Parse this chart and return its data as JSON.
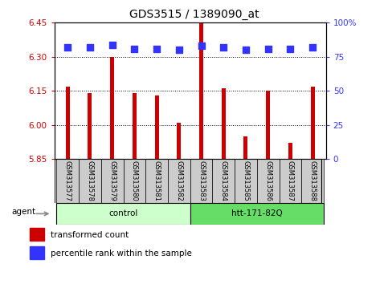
{
  "title": "GDS3515 / 1389090_at",
  "samples": [
    "GSM313577",
    "GSM313578",
    "GSM313579",
    "GSM313580",
    "GSM313581",
    "GSM313582",
    "GSM313583",
    "GSM313584",
    "GSM313585",
    "GSM313586",
    "GSM313587",
    "GSM313588"
  ],
  "bar_values": [
    6.17,
    6.14,
    6.3,
    6.14,
    6.13,
    6.01,
    6.46,
    6.16,
    5.95,
    6.15,
    5.92,
    6.17
  ],
  "percentile_values": [
    82,
    82,
    84,
    81,
    81,
    80,
    83,
    82,
    80,
    81,
    81,
    82
  ],
  "bar_color": "#cc0000",
  "dot_color": "#3333ff",
  "ylim_left": [
    5.85,
    6.45
  ],
  "ylim_right": [
    0,
    100
  ],
  "yticks_left": [
    5.85,
    6.0,
    6.15,
    6.3,
    6.45
  ],
  "yticks_right": [
    0,
    25,
    50,
    75,
    100
  ],
  "ytick_labels_right": [
    "0",
    "25",
    "50",
    "75",
    "100%"
  ],
  "hlines": [
    6.0,
    6.15,
    6.3
  ],
  "groups": [
    {
      "label": "control",
      "start": 0,
      "end": 5,
      "color": "#ccffcc"
    },
    {
      "label": "htt-171-82Q",
      "start": 6,
      "end": 11,
      "color": "#66dd66"
    }
  ],
  "agent_label": "agent",
  "legend_bar_label": "transformed count",
  "legend_dot_label": "percentile rank within the sample",
  "bg_color": "#ffffff",
  "plot_bg": "#ffffff",
  "tick_label_color_left": "#cc0000",
  "tick_label_color_right": "#3333ff",
  "bar_width": 0.18,
  "dot_size": 28,
  "sample_bg_color": "#cccccc",
  "title_fontsize": 10,
  "tick_fontsize": 7.5,
  "label_fontsize": 7.5
}
